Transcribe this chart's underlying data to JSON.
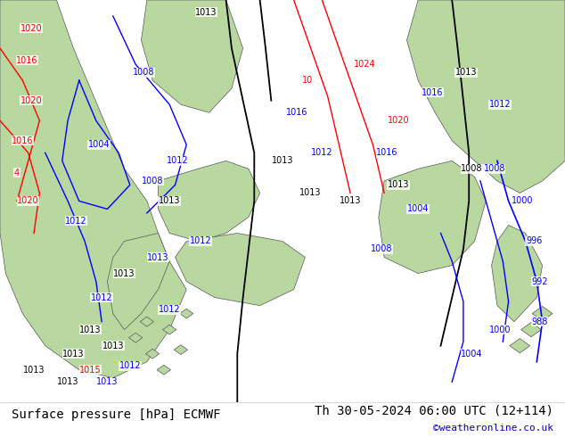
{
  "title_left": "Surface pressure [hPa] ECMWF",
  "title_right": "Th 30-05-2024 06:00 UTC (12+114)",
  "watermark": "©weatheronline.co.uk",
  "sea_color": "#e8f0e8",
  "land_color": "#b8d8a0",
  "bottom_bar_color": "#ffffff",
  "bottom_text_color": "#000000",
  "watermark_color": "#0000cc",
  "title_fontsize": 10,
  "watermark_fontsize": 8,
  "figsize": [
    6.34,
    4.9
  ],
  "dpi": 100
}
